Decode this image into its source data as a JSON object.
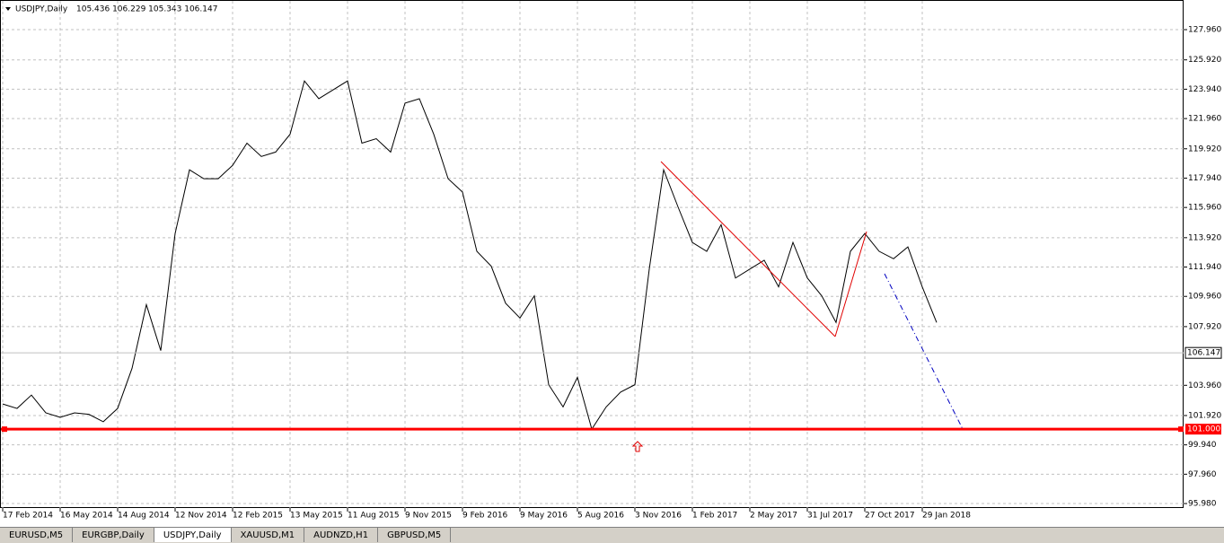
{
  "chart_data": {
    "type": "line",
    "title": "USDJPY,Daily",
    "subtitle": "105.436 106.229 105.343 106.147",
    "categories": [
      "17 Feb 2014",
      null,
      null,
      null,
      "16 May 2014",
      null,
      null,
      null,
      "14 Aug 2014",
      null,
      null,
      null,
      "12 Nov 2014",
      null,
      null,
      null,
      "12 Feb 2015",
      null,
      null,
      null,
      "13 May 2015",
      null,
      null,
      null,
      "11 Aug 2015",
      null,
      null,
      null,
      "9 Nov 2015",
      null,
      null,
      null,
      "9 Feb 2016",
      null,
      null,
      null,
      "9 May 2016",
      null,
      null,
      null,
      "5 Aug 2016",
      null,
      null,
      null,
      "3 Nov 2016",
      null,
      null,
      null,
      "1 Feb 2017",
      null,
      null,
      null,
      "2 May 2017",
      null,
      null,
      null,
      "31 Jul 2017",
      null,
      null,
      null,
      "27 Oct 2017",
      null,
      null,
      null,
      "29 Jan 2018",
      null
    ],
    "series": [
      {
        "name": "USDJPY",
        "color": "#000000",
        "values": [
          102.7,
          102.4,
          103.3,
          102.1,
          101.8,
          102.1,
          102.0,
          101.5,
          102.4,
          105.1,
          109.4,
          106.3,
          114.2,
          118.5,
          117.9,
          117.9,
          118.8,
          120.3,
          119.4,
          119.7,
          120.9,
          124.5,
          123.3,
          123.9,
          124.5,
          120.3,
          120.6,
          119.7,
          123.0,
          123.3,
          120.9,
          117.9,
          117.0,
          113.0,
          112.0,
          109.5,
          108.5,
          110.0,
          104.0,
          102.5,
          104.5,
          101.0,
          102.5,
          103.5,
          104.0,
          111.8,
          118.5,
          116.0,
          113.6,
          113.0,
          114.8,
          111.2,
          111.8,
          112.4,
          110.6,
          113.6,
          111.2,
          110.0,
          108.2,
          113.0,
          114.2,
          113.0,
          112.5,
          113.3,
          110.6,
          108.2
        ]
      }
    ],
    "ylim": [
      95.68,
      129.96
    ],
    "yticks": [
      {
        "value": 127.96,
        "label": "127.960"
      },
      {
        "value": 125.92,
        "label": "125.920"
      },
      {
        "value": 123.94,
        "label": "123.940"
      },
      {
        "value": 121.96,
        "label": "121.960"
      },
      {
        "value": 119.92,
        "label": "119.920"
      },
      {
        "value": 117.94,
        "label": "117.940"
      },
      {
        "value": 115.96,
        "label": "115.960"
      },
      {
        "value": 113.92,
        "label": "113.920"
      },
      {
        "value": 111.94,
        "label": "111.940"
      },
      {
        "value": 109.96,
        "label": "109.960"
      },
      {
        "value": 107.92,
        "label": "107.920"
      },
      {
        "value": 103.96,
        "label": "103.960"
      },
      {
        "value": 101.92,
        "label": "101.920"
      },
      {
        "value": 99.94,
        "label": "99.940"
      },
      {
        "value": 97.96,
        "label": "97.960"
      },
      {
        "value": 95.98,
        "label": "95.980"
      }
    ],
    "grid": true,
    "current_price": {
      "value": 106.147,
      "label": "106.147"
    },
    "hline": {
      "value": 101.0,
      "label": "101.000",
      "color": "#ff0000"
    }
  },
  "tabs": [
    "EURUSD,M5",
    "EURGBP,Daily",
    "USDJPY,Daily",
    "XAUUSD,M1",
    "AUDNZD,H1",
    "GBPUSD,M5"
  ],
  "active_tab": 2
}
